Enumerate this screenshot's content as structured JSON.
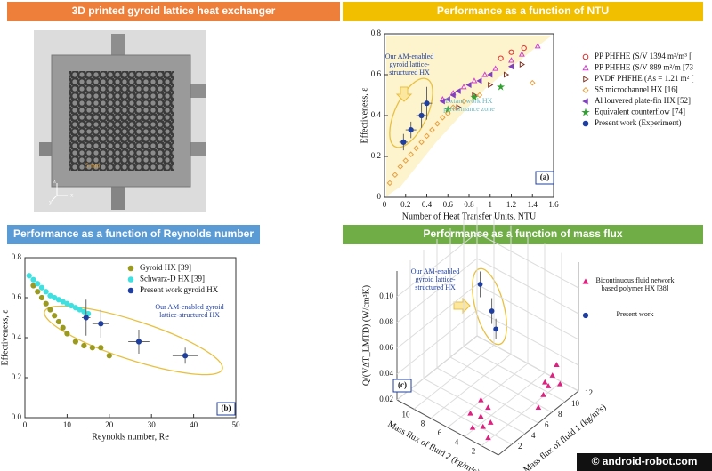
{
  "photo": {
    "title": "3D printed gyroid lattice heat exchanger",
    "header_color": "#ee7f3b",
    "scale_label": "5 mm",
    "axis_labels": [
      "z",
      "x",
      "y"
    ]
  },
  "chart_data": [
    {
      "type": "scatter",
      "title": "Performance as a function of NTU",
      "header_color": "#f2be00",
      "x_label": "Number of Heat Transfer Units, NTU",
      "y_label": "Effectiveness, ε",
      "xlim": [
        0,
        1.6
      ],
      "xticks": [
        0,
        0.2,
        0.4,
        0.6,
        0.8,
        1,
        1.2,
        1.4,
        1.6
      ],
      "ylim": [
        0,
        0.8
      ],
      "yticks": [
        0,
        0.2,
        0.4,
        0.6,
        0.8
      ],
      "legend": "outside right",
      "panel_label": "(a)",
      "annotations": [
        "Our AM-enabled gyroid lattice-structured HX",
        "Extant work HX performance zone"
      ],
      "series": [
        {
          "name": "PP PHFHE (S/V 1394 m²/m³ [",
          "color": "#e03030",
          "marker": "o",
          "filled": false,
          "x": [
            1.1,
            1.2,
            1.32
          ],
          "values": [
            0.68,
            0.71,
            0.73
          ]
        },
        {
          "name": "PP PHFHE (S/V 889 m²/m [73",
          "color": "#d040d0",
          "marker": "^",
          "filled": false,
          "x": [
            0.55,
            0.65,
            0.75,
            0.85,
            0.95,
            1.05,
            1.2,
            1.3,
            1.45
          ],
          "values": [
            0.48,
            0.51,
            0.54,
            0.57,
            0.6,
            0.63,
            0.67,
            0.7,
            0.74
          ]
        },
        {
          "name": "PVDF PHFHE (As = 1.21 m² [",
          "color": "#803020",
          "marker": ">",
          "filled": false,
          "x": [
            0.7,
            0.85,
            1,
            1.15,
            1.3
          ],
          "values": [
            0.44,
            0.5,
            0.55,
            0.6,
            0.65
          ]
        },
        {
          "name": "SS microchannel HX [16]",
          "color": "#e8a040",
          "marker": "D",
          "filled": false,
          "x": [
            0.05,
            0.1,
            0.15,
            0.2,
            0.25,
            0.3,
            0.35,
            0.4,
            0.45,
            0.5,
            0.55,
            0.6,
            0.65,
            0.75,
            0.9,
            1.4
          ],
          "values": [
            0.07,
            0.11,
            0.15,
            0.18,
            0.21,
            0.24,
            0.27,
            0.3,
            0.33,
            0.36,
            0.39,
            0.41,
            0.44,
            0.47,
            0.5,
            0.56
          ]
        },
        {
          "name": "Al louvered plate-fin HX [52]",
          "color": "#8040c0",
          "marker": "<",
          "filled": true,
          "x": [
            0.55,
            0.6,
            0.65,
            0.7,
            0.8,
            0.9,
            1,
            1.2
          ],
          "values": [
            0.47,
            0.48,
            0.5,
            0.52,
            0.55,
            0.57,
            0.6,
            0.64
          ]
        },
        {
          "name": "Equivalent counterflow [74]",
          "color": "#30a030",
          "marker": "*",
          "filled": true,
          "x": [
            0.6,
            0.85,
            1.1
          ],
          "values": [
            0.43,
            0.49,
            0.54
          ]
        },
        {
          "name": "Present work (Experiment)",
          "color": "#1f3fa0",
          "marker": "o",
          "filled": true,
          "x": [
            0.18,
            0.25,
            0.35,
            0.4
          ],
          "values": [
            0.27,
            0.33,
            0.4,
            0.46
          ],
          "x_error": [
            0.04,
            0.05,
            0.05,
            0.05
          ],
          "y_error": [
            0.04,
            0.04,
            0.06,
            0.08
          ]
        }
      ]
    },
    {
      "type": "scatter",
      "title": "Performance as a function of Reynolds number",
      "header_color": "#5b9bd5",
      "x_label": "Reynolds number, Re",
      "y_label": "Effectiveness, ε",
      "xlim": [
        0,
        50
      ],
      "xticks": [
        0,
        10,
        20,
        30,
        40,
        50
      ],
      "ylim": [
        0,
        0.8
      ],
      "yticks": [
        {
          "value": 0,
          "label": "0.0"
        },
        0.2,
        0.4,
        0.6,
        0.8
      ],
      "legend": "upper right",
      "panel_label": "(b)",
      "annotations": [
        "Our AM-enabled gyroid lattice-structured HX"
      ],
      "series": [
        {
          "name": "Gyroid HX [39]",
          "color": "#9a9a20",
          "marker": "o",
          "filled": true,
          "x": [
            2,
            3,
            4,
            5,
            6,
            7,
            8,
            9,
            10,
            12,
            14,
            16,
            18,
            20
          ],
          "values": [
            0.66,
            0.63,
            0.6,
            0.57,
            0.54,
            0.51,
            0.48,
            0.45,
            0.42,
            0.38,
            0.36,
            0.35,
            0.35,
            0.31
          ]
        },
        {
          "name": "Schwarz-D HX [39]",
          "color": "#40e0e0",
          "marker": "o",
          "filled": true,
          "x": [
            1,
            2,
            3,
            4,
            5,
            6,
            7,
            8,
            9,
            10,
            11,
            12,
            13,
            14,
            15
          ],
          "values": [
            0.71,
            0.69,
            0.67,
            0.65,
            0.63,
            0.61,
            0.6,
            0.59,
            0.58,
            0.57,
            0.56,
            0.55,
            0.54,
            0.53,
            0.52
          ]
        },
        {
          "name": "Present work gyroid HX",
          "color": "#1f3fa0",
          "marker": "o",
          "filled": true,
          "x": [
            14.5,
            18,
            27,
            38
          ],
          "values": [
            0.5,
            0.47,
            0.38,
            0.31
          ],
          "x_error": [
            1,
            2,
            2.5,
            3
          ],
          "y_error": [
            0.09,
            0.07,
            0.06,
            0.04
          ]
        }
      ]
    },
    {
      "type": "scatter3d",
      "title": "Performance as a function of mass flux",
      "header_color": "#70ad47",
      "x_label": "Mass flux of fluid 2 (kg/m²s)",
      "y_label": "Mass flux of fluid 1 (kg/m²s)",
      "z_label": "Q/(V∆T_LMTD) (W/cm³K)",
      "xlim": [
        0,
        12
      ],
      "xticks": [
        2,
        4,
        6,
        8,
        10
      ],
      "ylim": [
        0,
        12
      ],
      "yticks": [
        2,
        4,
        6,
        8,
        10,
        12
      ],
      "zlim": [
        0.02,
        0.12
      ],
      "zticks": [
        0.02,
        0.04,
        0.06,
        0.08,
        {
          "value": 0.1,
          "label": "0.10"
        }
      ],
      "legend": "outside right",
      "panel_label": "(c)",
      "grid": true,
      "annotations": [
        "Our AM-enabled gyroid lattice-structured HX"
      ],
      "series": [
        {
          "name": "Bicontinuous fluid network based polymer HX [38]",
          "color": "#e02080",
          "marker": "^",
          "filled": true,
          "x": [
            3,
            3.5,
            4,
            2.5,
            3.2,
            4.5,
            2,
            3.8,
            1,
            1.2,
            1.5,
            1.8,
            1,
            2,
            0.8
          ],
          "y": [
            1.5,
            1.8,
            1.2,
            2,
            2.5,
            1.5,
            1,
            2.2,
            8,
            9,
            10,
            11,
            10.5,
            9.5,
            7
          ],
          "values": [
            0.025,
            0.03,
            0.022,
            0.028,
            0.035,
            0.03,
            0.022,
            0.04,
            0.03,
            0.032,
            0.035,
            0.038,
            0.028,
            0.03,
            0.025
          ]
        },
        {
          "name": "Present work",
          "color": "#1f3fa0",
          "marker": "o",
          "filled": true,
          "x": [
            6.1,
            5.2,
            4.8
          ],
          "y": [
            5,
            5.6,
            5.7
          ],
          "values": [
            0.11,
            0.09,
            0.077
          ],
          "error": [
            0.01,
            0.01,
            0.008
          ]
        }
      ]
    }
  ],
  "watermark": "© android-robot.com"
}
